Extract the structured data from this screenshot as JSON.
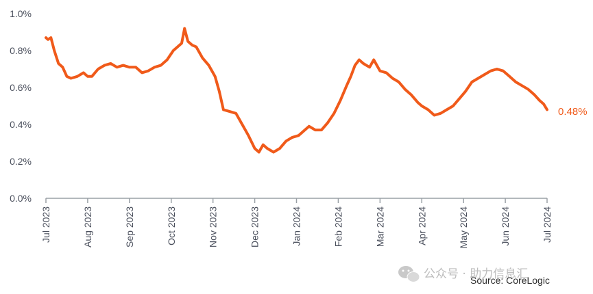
{
  "chart_data": {
    "type": "line",
    "title": "",
    "xlabel": "",
    "ylabel": "",
    "ylim": [
      0,
      0.01
    ],
    "yticks": [
      0,
      0.002,
      0.004,
      0.006,
      0.008,
      0.01
    ],
    "ytick_labels": [
      "0.0%",
      "0.2%",
      "0.4%",
      "0.6%",
      "0.8%",
      "1.0%"
    ],
    "x_tick_labels": [
      "Jul 2023",
      "Aug 2023",
      "Sep 2023",
      "Oct 2023",
      "Nov 2023",
      "Dec 2023",
      "Jan 2024",
      "Feb 2024",
      "Mar 2024",
      "Apr 2024",
      "May 2024",
      "Jun 2024",
      "Jul 2024"
    ],
    "grid": false,
    "legend": "none",
    "series": [
      {
        "color": "#f05a1a",
        "points": [
          [
            0.0,
            0.0087
          ],
          [
            0.05,
            0.0086
          ],
          [
            0.12,
            0.0087
          ],
          [
            0.2,
            0.008
          ],
          [
            0.3,
            0.0073
          ],
          [
            0.4,
            0.0071
          ],
          [
            0.5,
            0.0066
          ],
          [
            0.6,
            0.0065
          ],
          [
            0.75,
            0.0066
          ],
          [
            0.9,
            0.0068
          ],
          [
            1.0,
            0.0066
          ],
          [
            1.1,
            0.0066
          ],
          [
            1.25,
            0.007
          ],
          [
            1.4,
            0.0072
          ],
          [
            1.55,
            0.0073
          ],
          [
            1.7,
            0.0071
          ],
          [
            1.85,
            0.0072
          ],
          [
            2.0,
            0.0071
          ],
          [
            2.15,
            0.0071
          ],
          [
            2.3,
            0.0068
          ],
          [
            2.45,
            0.0069
          ],
          [
            2.6,
            0.0071
          ],
          [
            2.75,
            0.0072
          ],
          [
            2.9,
            0.0075
          ],
          [
            3.05,
            0.008
          ],
          [
            3.15,
            0.0082
          ],
          [
            3.25,
            0.0084
          ],
          [
            3.32,
            0.0092
          ],
          [
            3.4,
            0.0085
          ],
          [
            3.5,
            0.0083
          ],
          [
            3.6,
            0.0082
          ],
          [
            3.75,
            0.0076
          ],
          [
            3.9,
            0.0072
          ],
          [
            4.05,
            0.0066
          ],
          [
            4.15,
            0.0058
          ],
          [
            4.25,
            0.0048
          ],
          [
            4.4,
            0.0047
          ],
          [
            4.55,
            0.0046
          ],
          [
            4.7,
            0.004
          ],
          [
            4.85,
            0.0034
          ],
          [
            5.0,
            0.0027
          ],
          [
            5.1,
            0.0025
          ],
          [
            5.2,
            0.0029
          ],
          [
            5.3,
            0.0027
          ],
          [
            5.45,
            0.0025
          ],
          [
            5.6,
            0.0027
          ],
          [
            5.75,
            0.0031
          ],
          [
            5.9,
            0.0033
          ],
          [
            6.05,
            0.0034
          ],
          [
            6.2,
            0.0037
          ],
          [
            6.3,
            0.0039
          ],
          [
            6.45,
            0.0037
          ],
          [
            6.6,
            0.0037
          ],
          [
            6.75,
            0.0041
          ],
          [
            6.9,
            0.0046
          ],
          [
            7.05,
            0.0053
          ],
          [
            7.2,
            0.0061
          ],
          [
            7.3,
            0.0066
          ],
          [
            7.4,
            0.0072
          ],
          [
            7.5,
            0.0075
          ],
          [
            7.6,
            0.0073
          ],
          [
            7.75,
            0.0071
          ],
          [
            7.85,
            0.0075
          ],
          [
            8.0,
            0.0069
          ],
          [
            8.15,
            0.0068
          ],
          [
            8.3,
            0.0065
          ],
          [
            8.45,
            0.0063
          ],
          [
            8.6,
            0.0059
          ],
          [
            8.75,
            0.0056
          ],
          [
            8.9,
            0.0052
          ],
          [
            9.0,
            0.005
          ],
          [
            9.15,
            0.0048
          ],
          [
            9.3,
            0.0045
          ],
          [
            9.45,
            0.0046
          ],
          [
            9.6,
            0.0048
          ],
          [
            9.75,
            0.005
          ],
          [
            9.9,
            0.0054
          ],
          [
            10.05,
            0.0058
          ],
          [
            10.2,
            0.0063
          ],
          [
            10.35,
            0.0065
          ],
          [
            10.5,
            0.0067
          ],
          [
            10.65,
            0.0069
          ],
          [
            10.8,
            0.007
          ],
          [
            10.95,
            0.0069
          ],
          [
            11.1,
            0.0066
          ],
          [
            11.25,
            0.0063
          ],
          [
            11.4,
            0.0061
          ],
          [
            11.55,
            0.0059
          ],
          [
            11.7,
            0.0056
          ],
          [
            11.82,
            0.0053
          ],
          [
            11.92,
            0.0051
          ],
          [
            12.0,
            0.0048
          ]
        ]
      }
    ],
    "end_label": "0.48%",
    "source": "Source: CoreLogic"
  },
  "watermark": {
    "text": "公众号 · 助力信息汇",
    "icon": "wechat-icon"
  }
}
